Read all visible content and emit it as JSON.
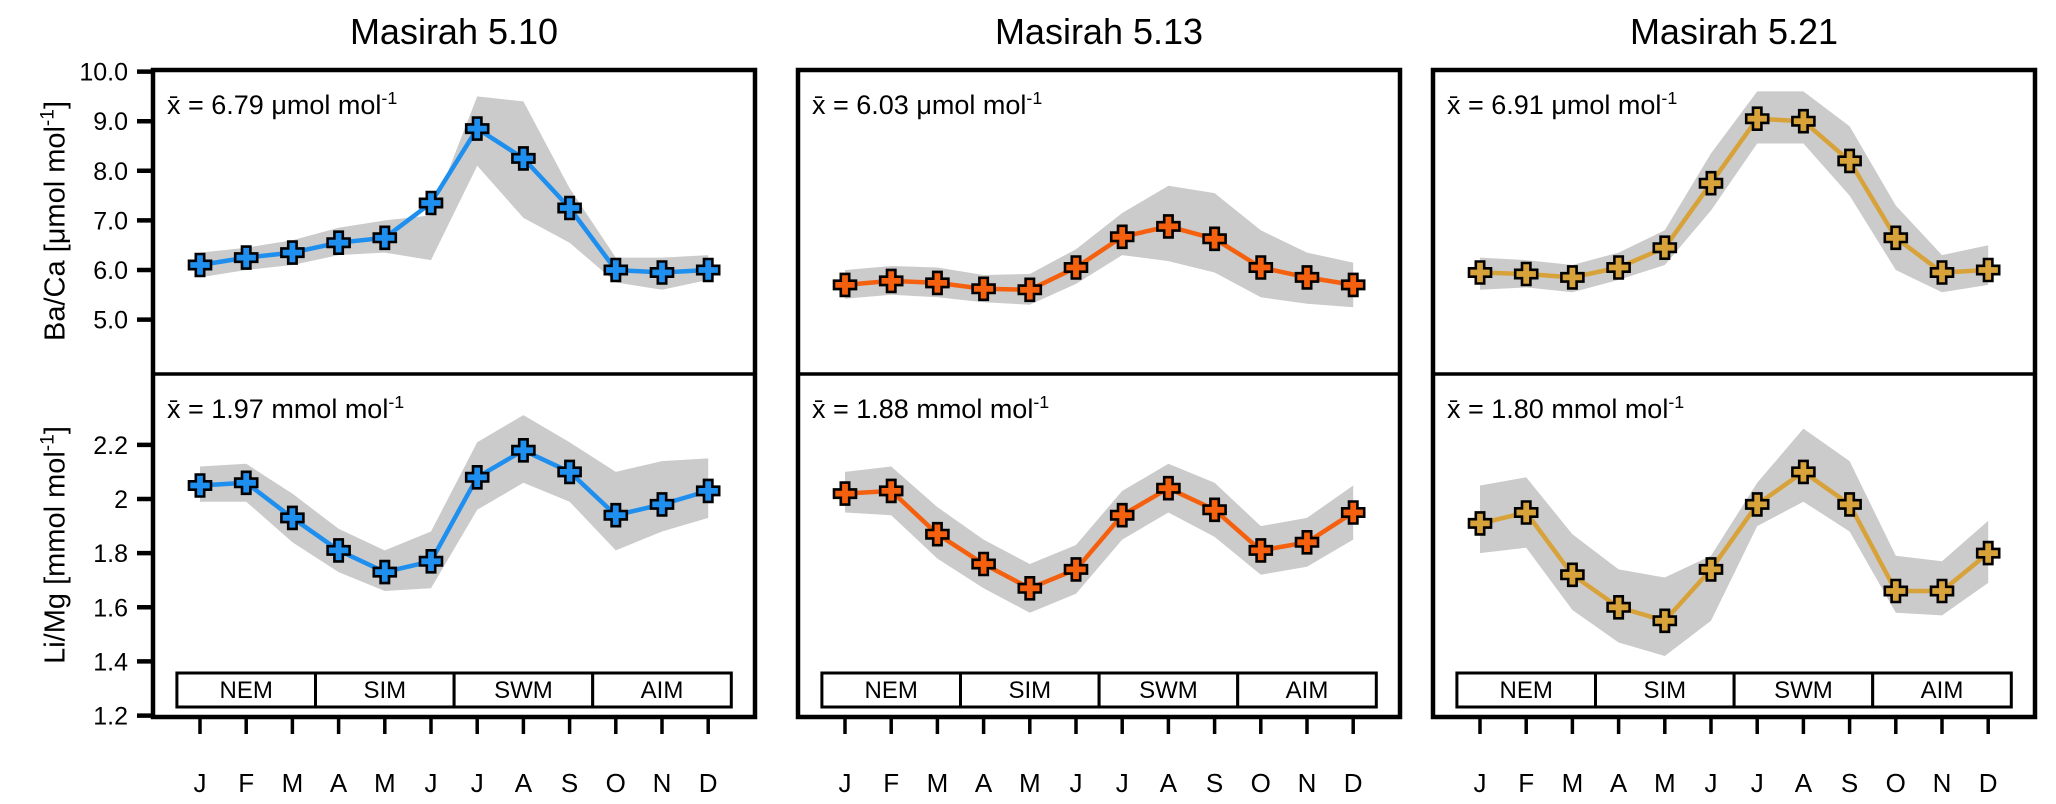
{
  "months": [
    "J",
    "F",
    "M",
    "A",
    "M",
    "J",
    "J",
    "A",
    "S",
    "O",
    "N",
    "D"
  ],
  "seasons": [
    "NEM",
    "SIM",
    "SWM",
    "AIM"
  ],
  "band_color": "#CBCBCB",
  "columns": [
    {
      "title": "Masirah 5.10",
      "color": "#1E8FEE"
    },
    {
      "title": "Masirah 5.13",
      "color": "#F4600E"
    },
    {
      "title": "Masirah 5.21",
      "color": "#D8A23B"
    }
  ],
  "axes": {
    "top": {
      "label_main": "Ba/Ca [μmol mol",
      "label_sup": "-1",
      "label_close": "]",
      "label_full": "Ba/Ca [μmol mol⁻¹]",
      "tick_values": [
        10.0,
        9.0,
        8.0,
        7.0,
        6.0,
        5.0
      ],
      "tick_labels": [
        "10.0",
        "9.0",
        "8.0",
        "7.0",
        "6.0",
        "5.0"
      ]
    },
    "bottom": {
      "label_main": "Li/Mg [mmol mol",
      "label_sup": "-1",
      "label_close": "]",
      "label_full": "Li/Mg [mmol mol⁻¹]",
      "tick_values": [
        2.2,
        2.0,
        1.8,
        1.6,
        1.4,
        1.2
      ],
      "tick_labels": [
        "2.2",
        "2",
        "1.8",
        "1.6",
        "1.4",
        "1.2"
      ]
    }
  },
  "chart_data": [
    {
      "id": "masirah510-baca",
      "type": "line",
      "row": "top",
      "col": 0,
      "title": "Masirah 5.10",
      "ylabel": "Ba/Ca [μmol mol⁻¹]",
      "mean_annotation": "x̄ = 6.79 μmol mol⁻¹",
      "mean_main": "x̄ = 6.79 μmol mol",
      "mean_sup": "-1",
      "x": [
        "J",
        "F",
        "M",
        "A",
        "M",
        "J",
        "J",
        "A",
        "S",
        "O",
        "N",
        "D"
      ],
      "values": [
        6.1,
        6.25,
        6.35,
        6.55,
        6.65,
        7.35,
        8.85,
        8.25,
        7.25,
        6.0,
        5.95,
        6.0
      ],
      "band_upper": [
        6.35,
        6.45,
        6.6,
        6.85,
        7.0,
        7.1,
        9.5,
        9.4,
        7.65,
        6.25,
        6.25,
        6.3
      ],
      "band_lower": [
        5.85,
        6.0,
        6.1,
        6.3,
        6.35,
        6.2,
        8.1,
        7.05,
        6.55,
        5.75,
        5.6,
        5.8
      ],
      "yticks": [
        5.0,
        6.0,
        7.0,
        8.0,
        9.0,
        10.0
      ],
      "ylim": [
        3.95,
        10.0
      ],
      "grid": false,
      "legend": "none",
      "color": "#1E8FEE"
    },
    {
      "id": "masirah510-limg",
      "type": "line",
      "row": "bottom",
      "col": 0,
      "title": "Masirah 5.10",
      "ylabel": "Li/Mg [mmol mol⁻¹]",
      "mean_annotation": "x̄ = 1.97 mmol mol⁻¹",
      "mean_main": "x̄ = 1.97 mmol mol",
      "mean_sup": "-1",
      "x": [
        "J",
        "F",
        "M",
        "A",
        "M",
        "J",
        "J",
        "A",
        "S",
        "O",
        "N",
        "D"
      ],
      "values": [
        2.05,
        2.06,
        1.93,
        1.81,
        1.73,
        1.77,
        2.08,
        2.18,
        2.1,
        1.94,
        1.98,
        2.03
      ],
      "band_upper": [
        2.12,
        2.13,
        2.02,
        1.89,
        1.81,
        1.88,
        2.21,
        2.31,
        2.21,
        2.1,
        2.14,
        2.15
      ],
      "band_lower": [
        1.99,
        1.99,
        1.84,
        1.73,
        1.66,
        1.67,
        1.96,
        2.06,
        1.99,
        1.81,
        1.88,
        1.93
      ],
      "yticks": [
        1.2,
        1.4,
        1.6,
        1.8,
        2.0,
        2.2
      ],
      "ylim": [
        1.2,
        2.46
      ],
      "grid": false,
      "legend": "none",
      "color": "#1E8FEE"
    },
    {
      "id": "masirah513-baca",
      "type": "line",
      "row": "top",
      "col": 1,
      "title": "Masirah 5.13",
      "ylabel": "Ba/Ca [μmol mol⁻¹]",
      "mean_annotation": "x̄ = 6.03 μmol mol⁻¹",
      "mean_main": "x̄ = 6.03 μmol mol",
      "mean_sup": "-1",
      "x": [
        "J",
        "F",
        "M",
        "A",
        "M",
        "J",
        "J",
        "A",
        "S",
        "O",
        "N",
        "D"
      ],
      "values": [
        5.7,
        5.78,
        5.74,
        5.62,
        5.6,
        6.05,
        6.67,
        6.88,
        6.63,
        6.05,
        5.85,
        5.7
      ],
      "band_upper": [
        6.0,
        6.08,
        6.05,
        5.9,
        5.92,
        6.42,
        7.15,
        7.7,
        7.55,
        6.8,
        6.35,
        6.15
      ],
      "band_lower": [
        5.42,
        5.5,
        5.45,
        5.35,
        5.3,
        5.72,
        6.3,
        6.18,
        5.95,
        5.45,
        5.32,
        5.25
      ],
      "yticks": [
        5.0,
        6.0,
        7.0,
        8.0,
        9.0,
        10.0
      ],
      "ylim": [
        3.95,
        10.0
      ],
      "grid": false,
      "legend": "none",
      "color": "#F4600E"
    },
    {
      "id": "masirah513-limg",
      "type": "line",
      "row": "bottom",
      "col": 1,
      "title": "Masirah 5.13",
      "ylabel": "Li/Mg [mmol mol⁻¹]",
      "mean_annotation": "x̄ = 1.88 mmol mol⁻¹",
      "mean_main": "x̄ = 1.88 mmol mol",
      "mean_sup": "-1",
      "x": [
        "J",
        "F",
        "M",
        "A",
        "M",
        "J",
        "J",
        "A",
        "S",
        "O",
        "N",
        "D"
      ],
      "values": [
        2.02,
        2.03,
        1.87,
        1.76,
        1.67,
        1.74,
        1.94,
        2.04,
        1.96,
        1.81,
        1.84,
        1.95
      ],
      "band_upper": [
        2.1,
        2.12,
        1.97,
        1.85,
        1.76,
        1.83,
        2.03,
        2.13,
        2.06,
        1.9,
        1.93,
        2.05
      ],
      "band_lower": [
        1.95,
        1.94,
        1.78,
        1.67,
        1.58,
        1.65,
        1.85,
        1.95,
        1.86,
        1.72,
        1.75,
        1.85
      ],
      "yticks": [
        1.2,
        1.4,
        1.6,
        1.8,
        2.0,
        2.2
      ],
      "ylim": [
        1.2,
        2.46
      ],
      "grid": false,
      "legend": "none",
      "color": "#F4600E"
    },
    {
      "id": "masirah521-baca",
      "type": "line",
      "row": "top",
      "col": 2,
      "title": "Masirah 5.21",
      "ylabel": "Ba/Ca [μmol mol⁻¹]",
      "mean_annotation": "x̄ = 6.91 μmol mol⁻¹",
      "mean_main": "x̄ = 6.91 μmol mol",
      "mean_sup": "-1",
      "x": [
        "J",
        "F",
        "M",
        "A",
        "M",
        "J",
        "J",
        "A",
        "S",
        "O",
        "N",
        "D"
      ],
      "values": [
        5.95,
        5.92,
        5.85,
        6.05,
        6.45,
        7.75,
        9.05,
        9.0,
        8.2,
        6.65,
        5.95,
        6.0
      ],
      "band_upper": [
        6.25,
        6.2,
        6.1,
        6.35,
        6.8,
        8.35,
        9.6,
        9.6,
        8.9,
        7.3,
        6.3,
        6.5
      ],
      "band_lower": [
        5.6,
        5.65,
        5.55,
        5.8,
        6.1,
        7.2,
        8.55,
        8.55,
        7.5,
        6.0,
        5.55,
        5.7
      ],
      "yticks": [
        5.0,
        6.0,
        7.0,
        8.0,
        9.0,
        10.0
      ],
      "ylim": [
        3.95,
        10.0
      ],
      "grid": false,
      "legend": "none",
      "color": "#D8A23B"
    },
    {
      "id": "masirah521-limg",
      "type": "line",
      "row": "bottom",
      "col": 2,
      "title": "Masirah 5.21",
      "ylabel": "Li/Mg [mmol mol⁻¹]",
      "mean_annotation": "x̄ = 1.80 mmol mol⁻¹",
      "mean_main": "x̄ = 1.80 mmol mol",
      "mean_sup": "-1",
      "x": [
        "J",
        "F",
        "M",
        "A",
        "M",
        "J",
        "J",
        "A",
        "S",
        "O",
        "N",
        "D"
      ],
      "values": [
        1.91,
        1.95,
        1.72,
        1.6,
        1.55,
        1.74,
        1.98,
        2.1,
        1.98,
        1.66,
        1.66,
        1.8
      ],
      "band_upper": [
        2.05,
        2.08,
        1.87,
        1.74,
        1.71,
        1.79,
        2.06,
        2.26,
        2.14,
        1.79,
        1.77,
        1.92
      ],
      "band_lower": [
        1.8,
        1.82,
        1.59,
        1.47,
        1.42,
        1.55,
        1.9,
        1.99,
        1.88,
        1.58,
        1.57,
        1.69
      ],
      "yticks": [
        1.2,
        1.4,
        1.6,
        1.8,
        2.0,
        2.2
      ],
      "ylim": [
        1.2,
        2.46
      ],
      "grid": false,
      "legend": "none",
      "color": "#D8A23B"
    }
  ]
}
